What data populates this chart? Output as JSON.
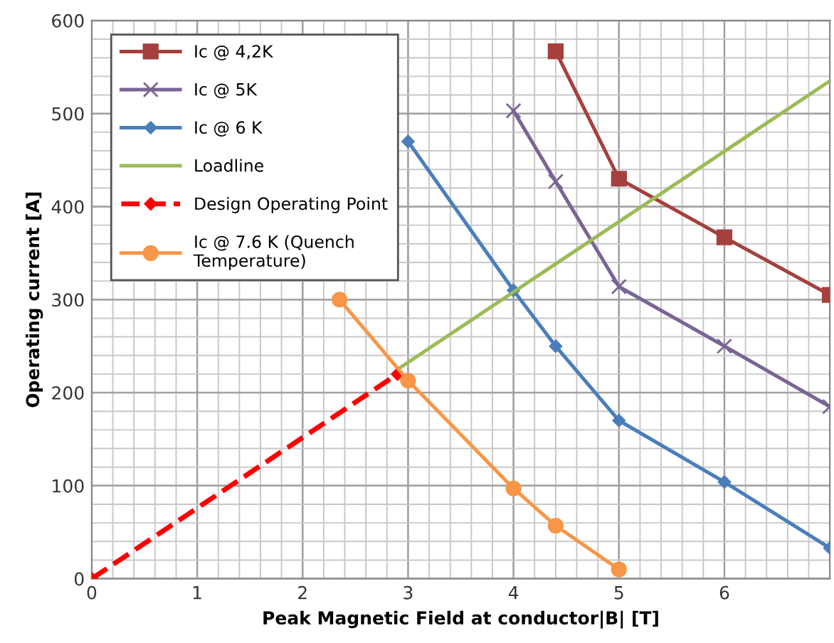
{
  "chart_data": {
    "type": "line",
    "xlabel": "Peak Magnetic Field at conductor|B| [T]",
    "ylabel": "Operating current [A]",
    "xlim": [
      0,
      7
    ],
    "ylim": [
      0,
      600
    ],
    "xticks": [
      0,
      1,
      2,
      3,
      4,
      5,
      6
    ],
    "yticks": [
      0,
      100,
      200,
      300,
      400,
      500,
      600
    ],
    "grid": true,
    "legend": "top left",
    "series": [
      {
        "name": "Ic @ 4,2K",
        "color": "#a5403d",
        "marker": "square",
        "x": [
          4.4,
          5,
          6,
          7
        ],
        "values": [
          567,
          430,
          367,
          305
        ]
      },
      {
        "name": "Ic @ 5K",
        "color": "#7a6496",
        "marker": "cross",
        "x": [
          4,
          4.4,
          5,
          6,
          7
        ],
        "values": [
          503,
          427,
          314,
          250,
          185
        ]
      },
      {
        "name": "Ic @ 6 K",
        "color": "#4a7ebb",
        "marker": "diamond",
        "x": [
          3,
          4,
          4.4,
          5,
          6,
          7
        ],
        "values": [
          470,
          310,
          250,
          170,
          104,
          33
        ]
      },
      {
        "name": "Loadline",
        "color": "#9bbb59",
        "marker": "none",
        "x": [
          2.9,
          7
        ],
        "values": [
          225,
          535
        ]
      },
      {
        "name": "Design Operating Point",
        "color": "#ff0000",
        "marker": "diamond",
        "line_style": "dashed",
        "x": [
          0,
          2.9
        ],
        "values": [
          0,
          220
        ]
      },
      {
        "name": "Ic @ 7.6 K (Quench\nTemperature)",
        "color": "#f79646",
        "marker": "circle",
        "x": [
          2.35,
          3,
          4,
          4.4,
          5
        ],
        "values": [
          300,
          213,
          97,
          57,
          10
        ]
      }
    ]
  }
}
